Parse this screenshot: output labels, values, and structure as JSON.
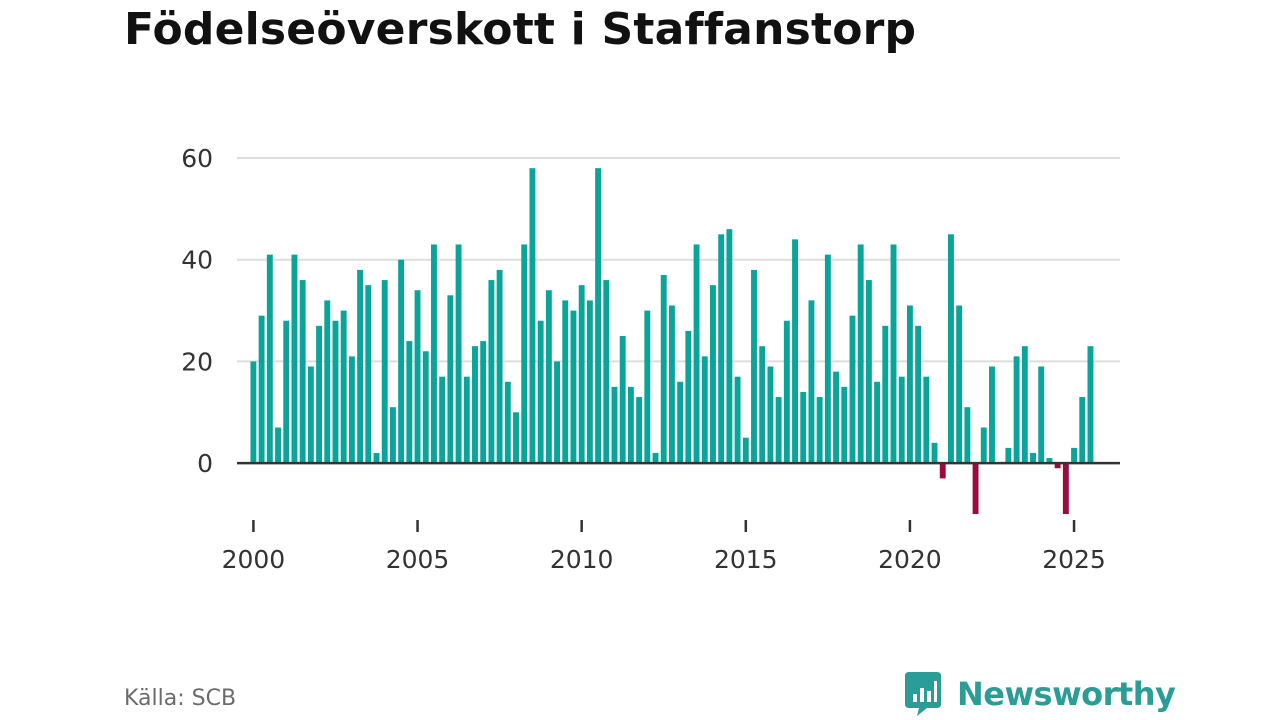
{
  "title": "Födelseöverskott i Staffanstorp",
  "source": "Källa: SCB",
  "brand": {
    "name": "Newsworthy",
    "icon": "newsworthy-logo-icon"
  },
  "colors": {
    "positive": "#0aa59a",
    "negative": "#9b0c3c",
    "grid": "#dddddd",
    "zero_line": "#333333",
    "text": "#333333"
  },
  "chart_data": {
    "type": "bar",
    "title": "Födelseöverskott i Staffanstorp",
    "xlabel": "",
    "ylabel": "",
    "ylim": [
      -10,
      60
    ],
    "yticks": [
      0,
      20,
      40,
      60
    ],
    "xlim": [
      1999.5,
      2026.4
    ],
    "xticks": [
      2000,
      2005,
      2010,
      2015,
      2020,
      2025
    ],
    "grid": true,
    "legend": "none",
    "series": [
      {
        "start": "2000-Q1",
        "frequency": "quarterly",
        "values": [
          20,
          29,
          41,
          7,
          28,
          41,
          36,
          19,
          27,
          32,
          28,
          30,
          21,
          38,
          35,
          2,
          36,
          11,
          40,
          24,
          34,
          22,
          43,
          17,
          33,
          43,
          17,
          23,
          24,
          36,
          38,
          16,
          10,
          43,
          58,
          28,
          34,
          20,
          32,
          30,
          35,
          32,
          58,
          36,
          15,
          25,
          15,
          13,
          30,
          2,
          37,
          31,
          16,
          26,
          43,
          21,
          35,
          45,
          46,
          17,
          5,
          38,
          23,
          19,
          13,
          28,
          44,
          14,
          32,
          13,
          41,
          18,
          15,
          29,
          43,
          36,
          16,
          27,
          43,
          17,
          31,
          27,
          17,
          4,
          -3,
          45,
          31,
          11,
          -10,
          7,
          19,
          0,
          3,
          21,
          23,
          2,
          19,
          1,
          -1,
          -10,
          3,
          13,
          23
        ]
      }
    ]
  }
}
